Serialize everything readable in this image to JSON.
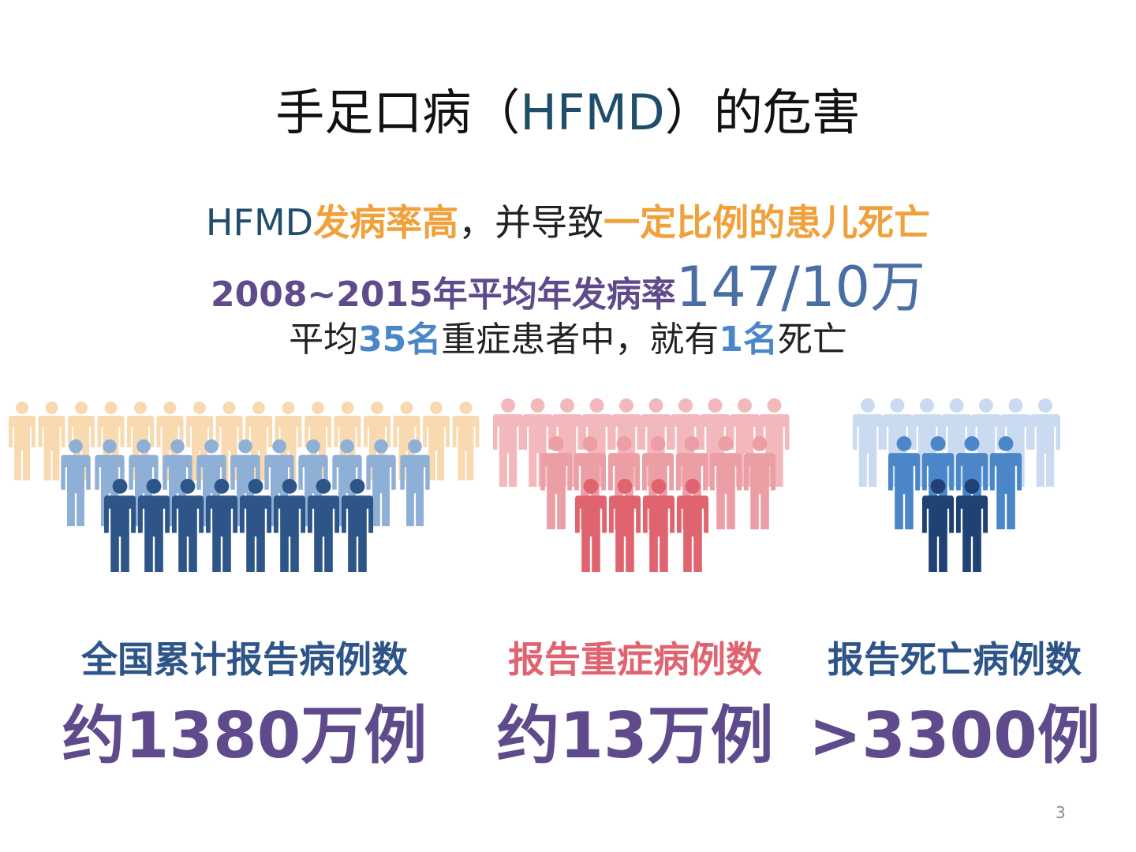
{
  "slide": {
    "title": {
      "pre": "手足口病（",
      "accent": "HFMD",
      "post": "）的危害"
    },
    "line1": {
      "a": "HFMD",
      "b": "发病率高",
      "c": "，并导致",
      "d": "一定比例的患儿死亡"
    },
    "line2": {
      "a": "2008~2015年平均年发病率",
      "b": "147/10万"
    },
    "line3": {
      "a": "平均",
      "b": "35名",
      "c": "重症患者中，就有",
      "d": "1名",
      "e": "死亡"
    },
    "stats": [
      {
        "label": "全国累计报告病例数",
        "value": "约1380万例"
      },
      {
        "label": "报告重症病例数",
        "value": "约13万例"
      },
      {
        "label": "报告死亡病例数",
        "value": ">3300例"
      }
    ],
    "page_number": "3"
  },
  "figure_groups": [
    {
      "name": "cases",
      "icon": "person-icon",
      "colors": [
        "#f8d9b0",
        "#8fb0d6",
        "#2e5588"
      ]
    },
    {
      "name": "severe",
      "icon": "person-icon",
      "colors": [
        "#f3b8bc",
        "#eb9ea3",
        "#e06470"
      ]
    },
    {
      "name": "deaths",
      "icon": "person-icon",
      "colors": [
        "#c9daf1",
        "#4a86c8",
        "#1f4173"
      ]
    }
  ]
}
